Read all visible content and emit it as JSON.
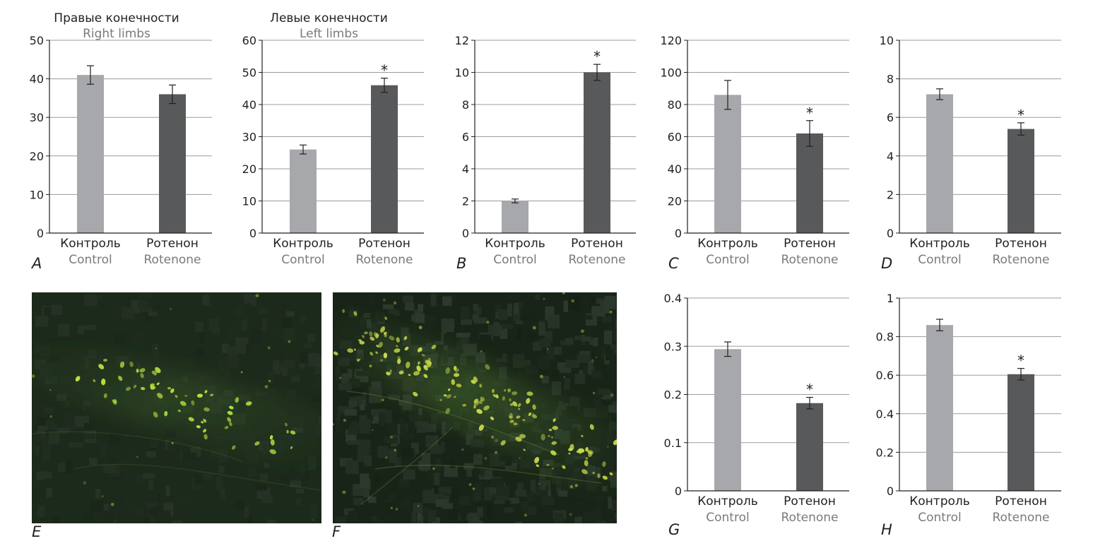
{
  "colors": {
    "control": "#a7a8ab",
    "rotenone": "#58595b",
    "grid": "#9b9b9b",
    "axis": "#231f20",
    "text_ru": "#231f20",
    "text_en": "#7a7a7a",
    "micro_bg": "#1d2a1e",
    "micro_cell": "#b8e04a"
  },
  "images": [
    {
      "label": "E",
      "content": "fluorescence-micrograph-control"
    },
    {
      "label": "F",
      "content": "fluorescence-micrograph-rotenone"
    }
  ],
  "chart_data": [
    {
      "type": "bar",
      "panel_label": "A",
      "title_ru": "Правые конечности",
      "title_en": "Right limbs",
      "categories_ru": [
        "Контроль",
        "Ротенон"
      ],
      "categories_en": [
        "Control",
        "Rotenone"
      ],
      "values": [
        41,
        36
      ],
      "errors": [
        2.4,
        2.4
      ],
      "significant": [
        false,
        false
      ],
      "ylim": [
        0,
        50
      ],
      "yticks": [
        0,
        10,
        20,
        30,
        40,
        50
      ],
      "grid": true
    },
    {
      "type": "bar",
      "panel_label": "",
      "title_ru": "Левые конечности",
      "title_en": "Left limbs",
      "categories_ru": [
        "Контроль",
        "Ротенон"
      ],
      "categories_en": [
        "Control",
        "Rotenone"
      ],
      "values": [
        26,
        46
      ],
      "errors": [
        1.4,
        2.2
      ],
      "significant": [
        false,
        true
      ],
      "ylim": [
        0,
        60
      ],
      "yticks": [
        0,
        10,
        20,
        30,
        40,
        50,
        60
      ],
      "grid": true
    },
    {
      "type": "bar",
      "panel_label": "B",
      "title_ru": "",
      "title_en": "",
      "categories_ru": [
        "Контроль",
        "Ротенон"
      ],
      "categories_en": [
        "Control",
        "Rotenone"
      ],
      "values": [
        2.0,
        10.0
      ],
      "errors": [
        0.12,
        0.5
      ],
      "significant": [
        false,
        true
      ],
      "ylim": [
        0,
        12
      ],
      "yticks": [
        0,
        2,
        4,
        6,
        8,
        10,
        12
      ],
      "grid": true
    },
    {
      "type": "bar",
      "panel_label": "C",
      "title_ru": "",
      "title_en": "",
      "categories_ru": [
        "Контроль",
        "Ротенон"
      ],
      "categories_en": [
        "Control",
        "Rotenone"
      ],
      "values": [
        86,
        62
      ],
      "errors": [
        9,
        8
      ],
      "significant": [
        false,
        true
      ],
      "ylim": [
        0,
        120
      ],
      "yticks": [
        0,
        20,
        40,
        60,
        80,
        100,
        120
      ],
      "grid": true
    },
    {
      "type": "bar",
      "panel_label": "D",
      "title_ru": "",
      "title_en": "",
      "categories_ru": [
        "Контроль",
        "Ротенон"
      ],
      "categories_en": [
        "Control",
        "Rotenone"
      ],
      "values": [
        7.2,
        5.4
      ],
      "errors": [
        0.28,
        0.32
      ],
      "significant": [
        false,
        true
      ],
      "ylim": [
        0,
        10
      ],
      "yticks": [
        0,
        2,
        4,
        6,
        8,
        10
      ],
      "grid": true
    },
    {
      "type": "bar",
      "panel_label": "G",
      "title_ru": "",
      "title_en": "",
      "categories_ru": [
        "Контроль",
        "Ротенон"
      ],
      "categories_en": [
        "Control",
        "Rotenone"
      ],
      "values": [
        0.294,
        0.182
      ],
      "errors": [
        0.015,
        0.012
      ],
      "significant": [
        false,
        true
      ],
      "ylim": [
        0,
        0.4
      ],
      "yticks": [
        0,
        0.1,
        0.2,
        0.3,
        0.4
      ],
      "grid": true
    },
    {
      "type": "bar",
      "panel_label": "H",
      "title_ru": "",
      "title_en": "",
      "categories_ru": [
        "Контроль",
        "Ротенон"
      ],
      "categories_en": [
        "Control",
        "Rotenone"
      ],
      "values": [
        0.86,
        0.605
      ],
      "errors": [
        0.03,
        0.03
      ],
      "significant": [
        false,
        true
      ],
      "ylim": [
        0,
        1
      ],
      "yticks": [
        0,
        0.2,
        0.4,
        0.6,
        0.8,
        1
      ],
      "grid": true
    }
  ]
}
